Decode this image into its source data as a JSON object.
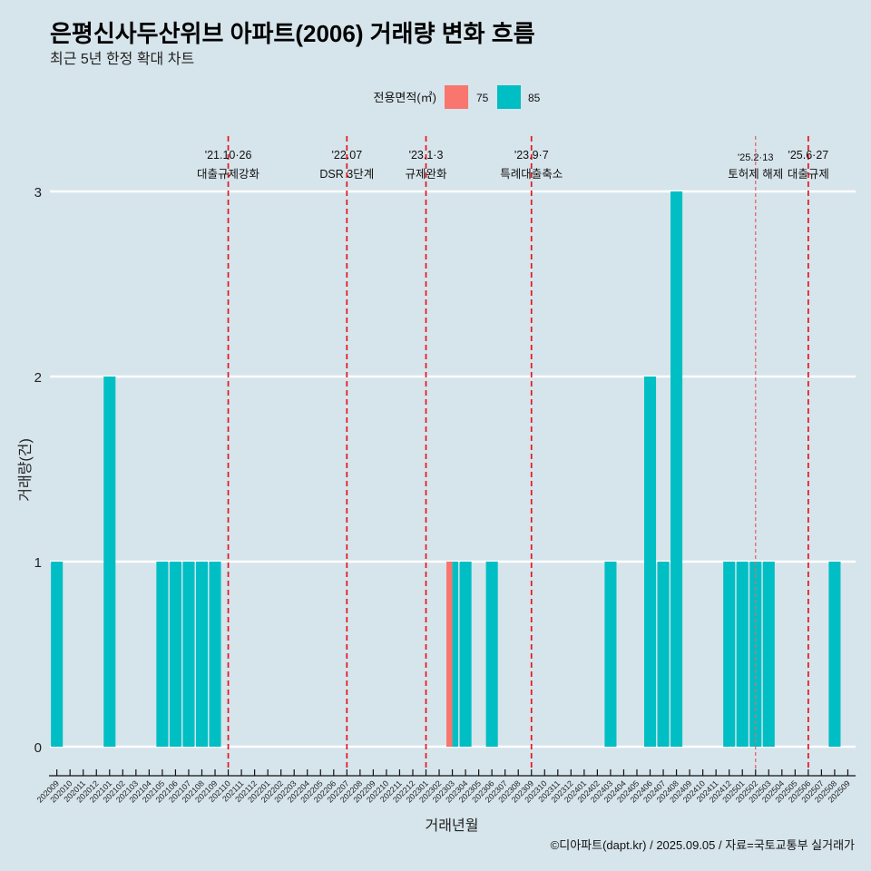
{
  "header": {
    "title": "은평신사두산위브 아파트(2006) 거래량 변화 흐름",
    "subtitle": "최근 5년 한정 확대 차트"
  },
  "legend": {
    "title": "전용면적(㎡)",
    "items": [
      {
        "label": "75",
        "color": "#F8766D"
      },
      {
        "label": "85",
        "color": "#00BFC4"
      }
    ]
  },
  "chart_data": {
    "type": "bar",
    "title": "은평신사두산위브 아파트(2006) 거래량 변화 흐름",
    "subtitle": "최근 5년 한정 확대 차트",
    "xlabel": "거래년월",
    "ylabel": "거래량(건)",
    "ylim": [
      0,
      3
    ],
    "yticks": [
      "0",
      "1",
      "2",
      "3"
    ],
    "grid": true,
    "legend_position": "top",
    "position": "dodge",
    "categories": [
      "202009",
      "202010",
      "202011",
      "202012",
      "202101",
      "202102",
      "202103",
      "202104",
      "202105",
      "202106",
      "202107",
      "202108",
      "202109",
      "202110",
      "202111",
      "202112",
      "202201",
      "202202",
      "202203",
      "202204",
      "202205",
      "202206",
      "202207",
      "202208",
      "202209",
      "202210",
      "202211",
      "202212",
      "202301",
      "202302",
      "202303",
      "202304",
      "202305",
      "202306",
      "202307",
      "202308",
      "202309",
      "202310",
      "202311",
      "202312",
      "202401",
      "202402",
      "202403",
      "202404",
      "202405",
      "202406",
      "202407",
      "202408",
      "202409",
      "202410",
      "202411",
      "202412",
      "202501",
      "202502",
      "202503",
      "202504",
      "202505",
      "202506",
      "202507",
      "202508",
      "202509"
    ],
    "series": [
      {
        "name": "75",
        "color": "#F8766D",
        "values": [
          0,
          0,
          0,
          0,
          0,
          0,
          0,
          0,
          0,
          0,
          0,
          0,
          0,
          0,
          0,
          0,
          0,
          0,
          0,
          0,
          0,
          0,
          0,
          0,
          0,
          0,
          0,
          0,
          0,
          0,
          1,
          0,
          0,
          0,
          0,
          0,
          0,
          0,
          0,
          0,
          0,
          0,
          0,
          0,
          0,
          0,
          0,
          0,
          0,
          0,
          0,
          0,
          0,
          0,
          0,
          0,
          0,
          0,
          0,
          0,
          0
        ]
      },
      {
        "name": "85",
        "color": "#00BFC4",
        "values": [
          1,
          0,
          0,
          0,
          2,
          0,
          0,
          0,
          1,
          1,
          1,
          1,
          1,
          0,
          0,
          0,
          0,
          0,
          0,
          0,
          0,
          0,
          0,
          0,
          0,
          0,
          0,
          0,
          0,
          0,
          1,
          1,
          0,
          1,
          0,
          0,
          0,
          0,
          0,
          0,
          0,
          0,
          1,
          0,
          0,
          2,
          1,
          3,
          0,
          0,
          0,
          1,
          1,
          1,
          1,
          0,
          0,
          0,
          0,
          1,
          0
        ]
      }
    ],
    "events": [
      {
        "category": "202110",
        "date": "'21.10·26",
        "label": "대출규제강화",
        "emphasis": "primary"
      },
      {
        "category": "202207",
        "date": "'22.07",
        "label": "DSR 3단계",
        "emphasis": "primary"
      },
      {
        "category": "202301",
        "date": "'23.1·3",
        "label": "규제완화",
        "emphasis": "primary"
      },
      {
        "category": "202309",
        "date": "'23.9·7",
        "label": "특례대출축소",
        "emphasis": "primary"
      },
      {
        "category": "202502",
        "date": "'25.2·13",
        "label": "토허제 해제",
        "emphasis": "secondary"
      },
      {
        "category": "202506",
        "date": "'25.6·27",
        "label": "대출규제",
        "emphasis": "primary"
      }
    ],
    "event_color": "#E8141C"
  },
  "footer": {
    "caption": "©디아파트(dapt.kr) / 2025.09.05 / 자료=국토교통부 실거래가"
  }
}
